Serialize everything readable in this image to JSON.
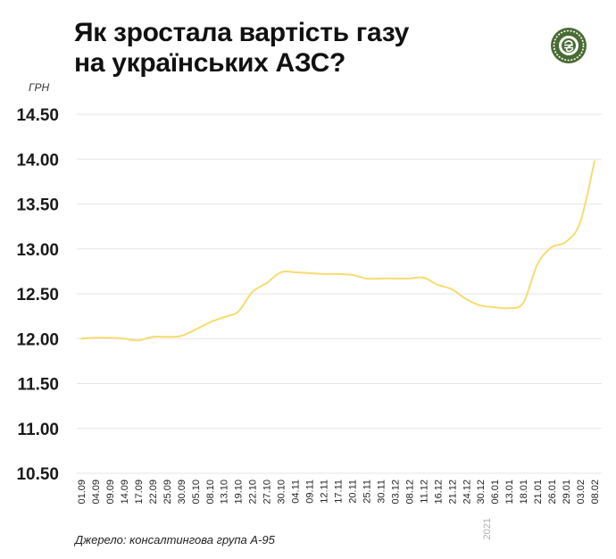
{
  "title_line1": "Як зростала вартість газу",
  "title_line2": "на українських АЗС?",
  "logo_icon": "hryvnia-coin-icon",
  "source": "Джерело: консалтингова група А-95",
  "colors": {
    "line": "#f7dc6f",
    "grid": "#e6e6e6",
    "logo": "#4a6b35"
  },
  "chart_data": {
    "type": "line",
    "title": "Як зростала вартість газу на українських АЗС?",
    "ylabel": "ГРН",
    "xlabel": "",
    "ylim": [
      10.5,
      14.5
    ],
    "yticks": [
      "14.50",
      "14.00",
      "13.50",
      "13.00",
      "12.50",
      "12.00",
      "11.50",
      "11.00",
      "10.50"
    ],
    "ytick_values": [
      14.5,
      14.0,
      13.5,
      13.0,
      12.5,
      12.0,
      11.5,
      11.0,
      10.5
    ],
    "xticks": [
      "01.09",
      "04.09",
      "09.09",
      "14.09",
      "17.09",
      "22.09",
      "25.09",
      "30.09",
      "05.10",
      "08.10",
      "13.10",
      "19.10",
      "22.10",
      "27.10",
      "30.10",
      "04.11",
      "09.11",
      "12.11",
      "17.11",
      "20.11",
      "25.11",
      "30.11",
      "03.12",
      "08.12",
      "11.12",
      "16.12",
      "21.12",
      "24.12",
      "30.12",
      "06.01",
      "13.01",
      "18.01",
      "21.01",
      "26.01",
      "29.01",
      "03.02",
      "08.02"
    ],
    "year_label": "2021",
    "grid": true,
    "legend": "none",
    "series": [
      {
        "x": [
          "01.09",
          "04.09",
          "09.09",
          "14.09",
          "17.09",
          "22.09",
          "25.09",
          "30.09",
          "05.10",
          "08.10",
          "13.10",
          "19.10",
          "22.10",
          "27.10",
          "30.10",
          "04.11",
          "09.11",
          "12.11",
          "17.11",
          "20.11",
          "25.11",
          "30.11",
          "03.12",
          "08.12",
          "11.12",
          "16.12",
          "21.12",
          "24.12",
          "30.12",
          "06.01",
          "13.01",
          "18.01",
          "21.01",
          "26.01",
          "29.01",
          "03.02",
          "08.02"
        ],
        "values": [
          12.0,
          12.01,
          12.01,
          12.0,
          11.98,
          12.02,
          12.02,
          12.03,
          12.1,
          12.18,
          12.24,
          12.3,
          12.52,
          12.62,
          12.74,
          12.74,
          12.73,
          12.72,
          12.72,
          12.71,
          12.67,
          12.67,
          12.67,
          12.67,
          12.68,
          12.6,
          12.55,
          12.44,
          12.37,
          12.35,
          12.34,
          12.4,
          12.83,
          13.02,
          13.08,
          13.3,
          13.98
        ]
      }
    ]
  }
}
